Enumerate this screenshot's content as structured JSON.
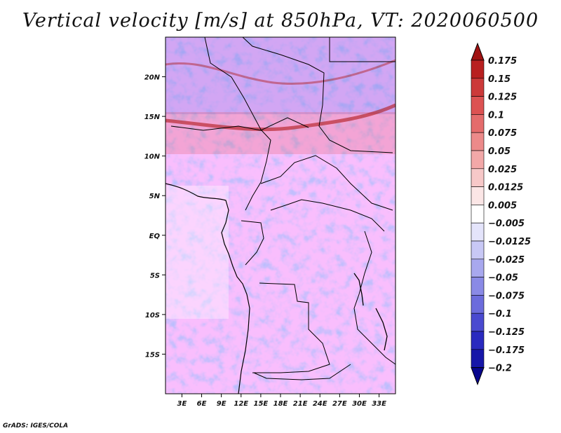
{
  "title": "Vertical velocity [m/s] at 850hPa, VT: 2020060500",
  "credit": "GrADS: IGES/COLA",
  "map": {
    "lat_ticks": [
      "20N",
      "15N",
      "10N",
      "5N",
      "EQ",
      "5S",
      "10S",
      "15S"
    ],
    "lat_values": [
      20,
      15,
      10,
      5,
      0,
      -5,
      -10,
      -15
    ],
    "lon_ticks": [
      "3E",
      "6E",
      "9E",
      "12E",
      "15E",
      "18E",
      "21E",
      "24E",
      "27E",
      "30E",
      "33E"
    ],
    "lon_values": [
      3,
      6,
      9,
      12,
      15,
      18,
      21,
      24,
      27,
      30,
      33
    ],
    "lat_range": [
      -20,
      25
    ],
    "lon_range": [
      0.5,
      35.5
    ]
  },
  "colorbar": {
    "labels": [
      "0.175",
      "0.15",
      "0.125",
      "0.1",
      "0.075",
      "0.05",
      "0.025",
      "0.0125",
      "0.005",
      "−0.005",
      "−0.0125",
      "−0.025",
      "−0.05",
      "−0.075",
      "−0.1",
      "−0.125",
      "−0.175",
      "−0.2"
    ],
    "colors": [
      "#a01212",
      "#b82020",
      "#cc3a3a",
      "#dc5252",
      "#e46c6c",
      "#ec8a8a",
      "#f2a8a8",
      "#f7c8c8",
      "#fbe6e6",
      "#ffffff",
      "#e4e4fb",
      "#c8c8f5",
      "#a8a8ee",
      "#8a8ae6",
      "#6c6cdc",
      "#4a4ad0",
      "#2a2abf",
      "#1616a8",
      "#08068e"
    ]
  }
}
